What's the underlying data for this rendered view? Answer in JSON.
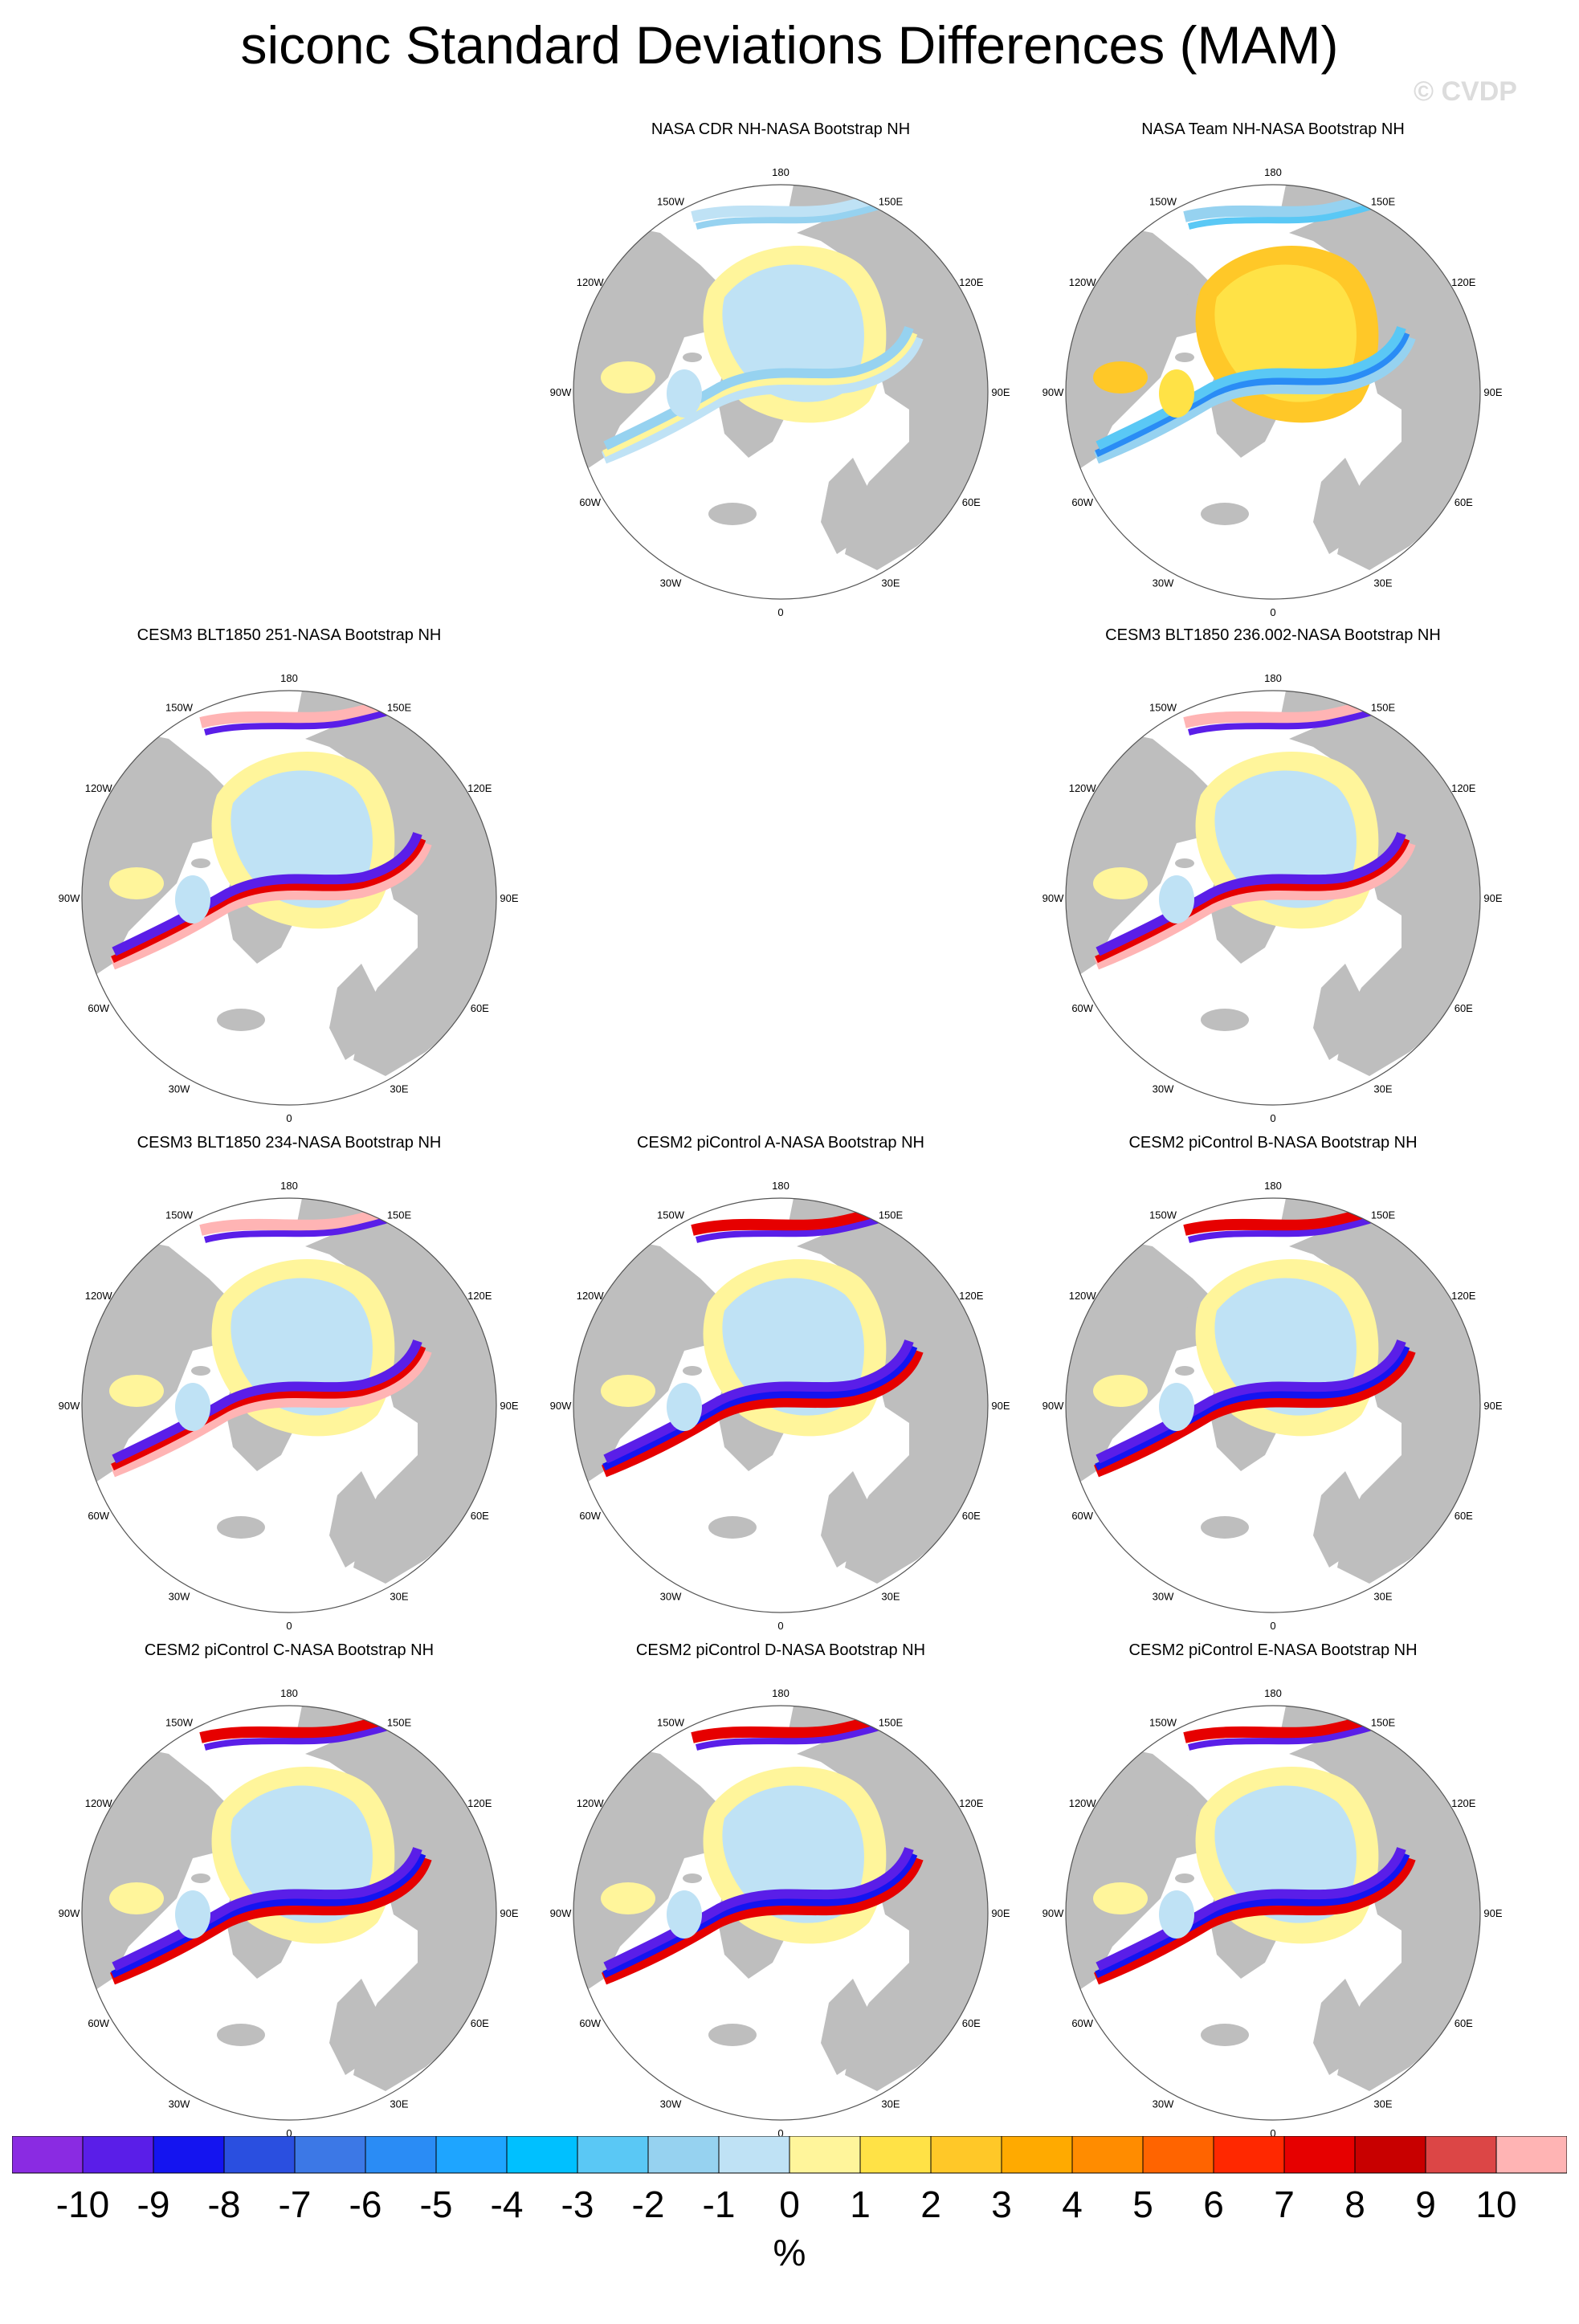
{
  "title": "siconc Standard Deviations Differences (MAM)",
  "watermark": "© CVDP",
  "panels": [
    {
      "title": "NASA CDR NH-NASA Bootstrap NH",
      "scheme": "obs-light"
    },
    {
      "title": "NASA Team NH-NASA Bootstrap NH",
      "scheme": "obs-yellow"
    },
    {
      "title": "CESM3 BLT1850 251-NASA Bootstrap NH",
      "scheme": "model-pink"
    },
    {
      "title": "CESM3 BLT1850 236.002-NASA Bootstrap NH",
      "scheme": "model-pink"
    },
    {
      "title": "CESM3 BLT1850 234-NASA Bootstrap NH",
      "scheme": "model-pink"
    },
    {
      "title": "CESM2 piControl A-NASA Bootstrap NH",
      "scheme": "model-blue"
    },
    {
      "title": "CESM2 piControl B-NASA Bootstrap NH",
      "scheme": "model-blue"
    },
    {
      "title": "CESM2 piControl C-NASA Bootstrap NH",
      "scheme": "model-blue"
    },
    {
      "title": "CESM2 piControl D-NASA Bootstrap NH",
      "scheme": "model-blue"
    },
    {
      "title": "CESM2 piControl E-NASA Bootstrap NH",
      "scheme": "model-blue"
    }
  ],
  "lon_labels": [
    "180",
    "150E",
    "120E",
    "90E",
    "60E",
    "30E",
    "0",
    "30W",
    "60W",
    "90W",
    "120W",
    "150W"
  ],
  "colorbar": {
    "labels": [
      "-10",
      "-9",
      "-8",
      "-7",
      "-6",
      "-5",
      "-4",
      "-3",
      "-2",
      "-1",
      "0",
      "1",
      "2",
      "3",
      "4",
      "5",
      "6",
      "7",
      "8",
      "9",
      "10"
    ],
    "colors": [
      "#8a2be2",
      "#5a1ee8",
      "#1414f0",
      "#2a4fe0",
      "#3c78e6",
      "#2a8cf5",
      "#1ea5ff",
      "#00c0ff",
      "#5ac8f5",
      "#96d2f0",
      "#bfe2f5",
      "#fff59b",
      "#ffe246",
      "#ffc828",
      "#ffaa00",
      "#ff8c00",
      "#ff6400",
      "#ff2800",
      "#e60000",
      "#c80000",
      "#dc4646",
      "#ffb4b4"
    ],
    "units": "%"
  },
  "colors": {
    "land": "#bebebe",
    "ocean": "#ffffff",
    "outline": "#555555"
  }
}
